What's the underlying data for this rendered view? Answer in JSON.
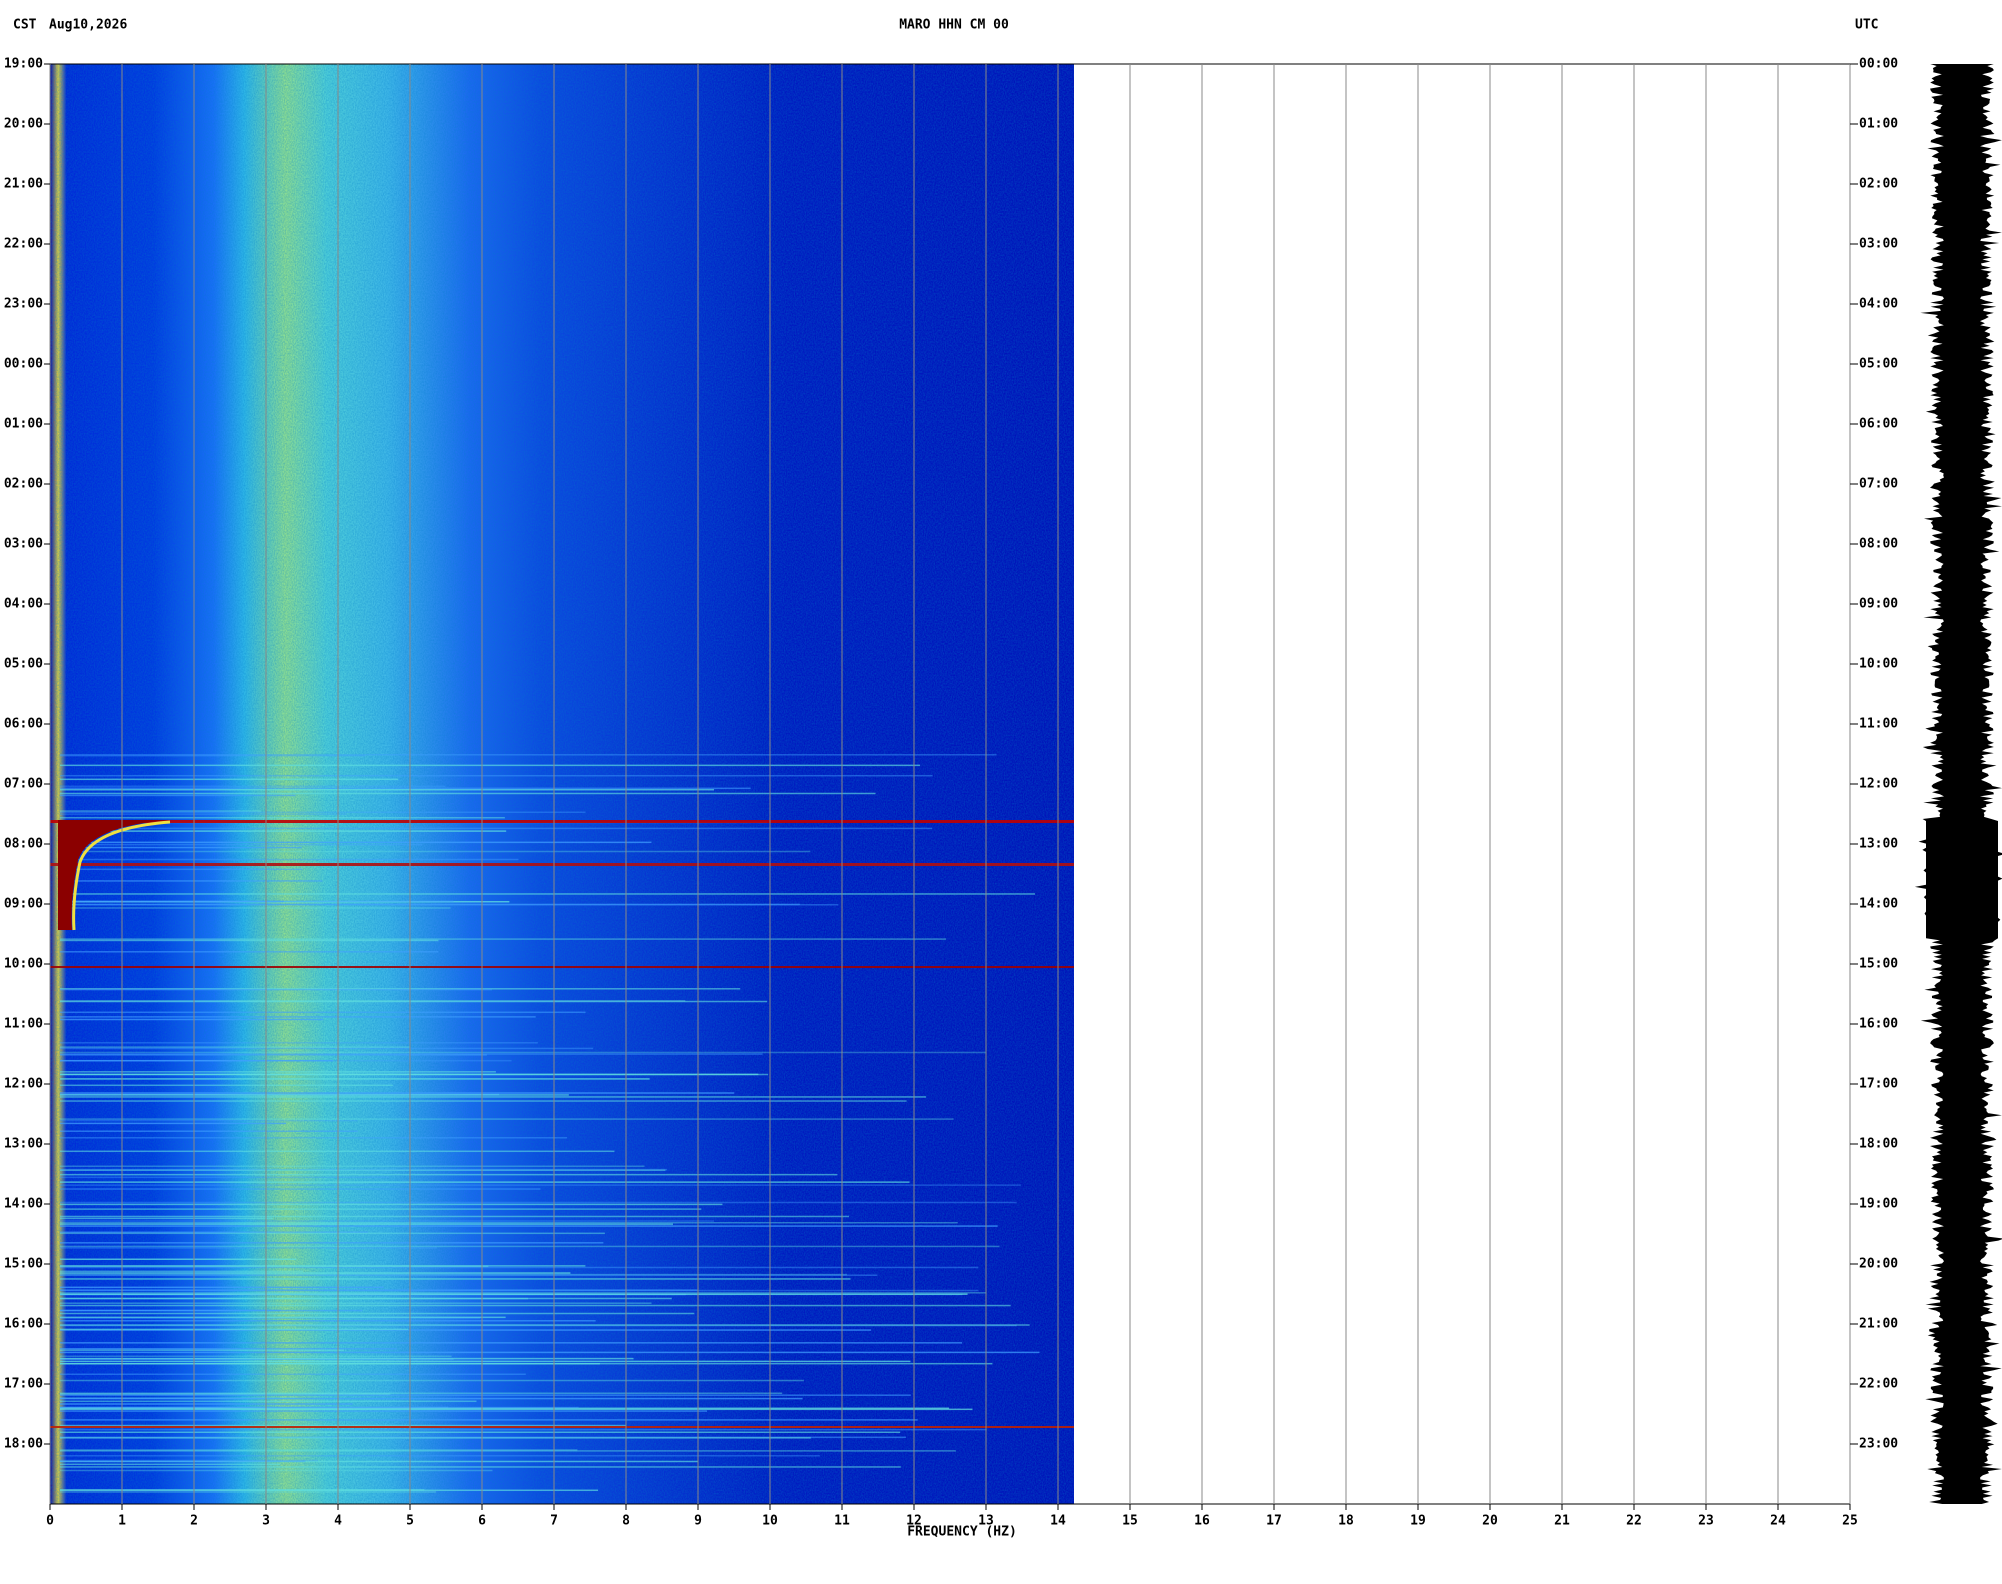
{
  "chart_data": {
    "type": "spectrogram",
    "title": "MARO HHN CM 00",
    "left_zone": "CST",
    "date": "Aug10,2026",
    "right_zone": "UTC",
    "xlabel": "FREQUENCY (HZ)",
    "xlim": [
      0,
      25
    ],
    "xticks": [
      0,
      1,
      2,
      3,
      4,
      5,
      6,
      7,
      8,
      9,
      10,
      11,
      12,
      13,
      14,
      15,
      16,
      17,
      18,
      19,
      20,
      21,
      22,
      23,
      24,
      25
    ],
    "ylim": [
      0,
      24
    ],
    "yticks": [
      {
        "value": 0,
        "label": "19:00"
      },
      {
        "value": 1,
        "label": "20:00"
      },
      {
        "value": 2,
        "label": "21:00"
      },
      {
        "value": 3,
        "label": "22:00"
      },
      {
        "value": 4,
        "label": "23:00"
      },
      {
        "value": 5,
        "label": "00:00"
      },
      {
        "value": 6,
        "label": "01:00"
      },
      {
        "value": 7,
        "label": "02:00"
      },
      {
        "value": 8,
        "label": "03:00"
      },
      {
        "value": 9,
        "label": "04:00"
      },
      {
        "value": 10,
        "label": "05:00"
      },
      {
        "value": 11,
        "label": "06:00"
      },
      {
        "value": 12,
        "label": "07:00"
      },
      {
        "value": 13,
        "label": "08:00"
      },
      {
        "value": 14,
        "label": "09:00"
      },
      {
        "value": 15,
        "label": "10:00"
      },
      {
        "value": 16,
        "label": "11:00"
      },
      {
        "value": 17,
        "label": "12:00"
      },
      {
        "value": 18,
        "label": "13:00"
      },
      {
        "value": 19,
        "label": "14:00"
      },
      {
        "value": 20,
        "label": "15:00"
      },
      {
        "value": 21,
        "label": "16:00"
      },
      {
        "value": 22,
        "label": "17:00"
      },
      {
        "value": 23,
        "label": "18:00"
      }
    ],
    "y2lim": [
      0,
      24
    ],
    "y2ticks": [
      {
        "value": 0,
        "label": "00:00"
      },
      {
        "value": 1,
        "label": "01:00"
      },
      {
        "value": 2,
        "label": "02:00"
      },
      {
        "value": 3,
        "label": "03:00"
      },
      {
        "value": 4,
        "label": "04:00"
      },
      {
        "value": 5,
        "label": "05:00"
      },
      {
        "value": 6,
        "label": "06:00"
      },
      {
        "value": 7,
        "label": "07:00"
      },
      {
        "value": 8,
        "label": "08:00"
      },
      {
        "value": 9,
        "label": "09:00"
      },
      {
        "value": 10,
        "label": "10:00"
      },
      {
        "value": 11,
        "label": "11:00"
      },
      {
        "value": 12,
        "label": "12:00"
      },
      {
        "value": 13,
        "label": "13:00"
      },
      {
        "value": 14,
        "label": "14:00"
      },
      {
        "value": 15,
        "label": "15:00"
      },
      {
        "value": 16,
        "label": "16:00"
      },
      {
        "value": 17,
        "label": "17:00"
      },
      {
        "value": 18,
        "label": "18:00"
      },
      {
        "value": 19,
        "label": "19:00"
      },
      {
        "value": 20,
        "label": "20:00"
      },
      {
        "value": 21,
        "label": "21:00"
      },
      {
        "value": 22,
        "label": "22:00"
      },
      {
        "value": 23,
        "label": "23:00"
      }
    ],
    "grid": true
  }
}
